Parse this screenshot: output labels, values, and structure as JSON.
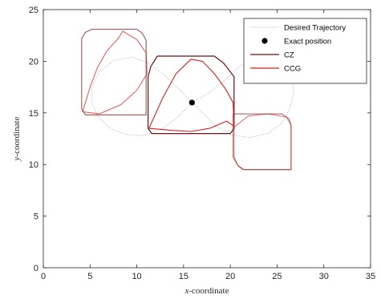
{
  "chart_data": {
    "type": "line",
    "xlabel_italic": "x",
    "xlabel_rest": "-coordinate",
    "ylabel_italic": "y",
    "ylabel_rest": "-coordinate",
    "xlim": [
      0,
      35
    ],
    "ylim": [
      0,
      25
    ],
    "xticks": [
      "0",
      "5",
      "10",
      "15",
      "20",
      "25",
      "30",
      "35"
    ],
    "yticks": [
      "0",
      "5",
      "10",
      "15",
      "20",
      "25"
    ],
    "grid": false,
    "legend_position": "top-right",
    "legend": [
      {
        "label": "Desired Trajectory",
        "style": "dotted-line",
        "color": "#b8bcc8"
      },
      {
        "label": "Exact position",
        "style": "marker",
        "color": "#000000"
      },
      {
        "label": "CZ",
        "style": "line",
        "color": "#6e1212"
      },
      {
        "label": "CCG",
        "style": "line",
        "color": "#d42020"
      }
    ],
    "exact_position": {
      "x": 15.9,
      "y": 16.0
    },
    "trajectory": [
      [
        15.9,
        16.0
      ],
      [
        17.5,
        16.8
      ],
      [
        19.2,
        18.0
      ],
      [
        21.0,
        19.5
      ],
      [
        22.6,
        20.3
      ],
      [
        24.5,
        20.4
      ],
      [
        26.0,
        19.8
      ],
      [
        26.6,
        18.6
      ],
      [
        26.8,
        17.0
      ],
      [
        26.4,
        15.5
      ],
      [
        25.5,
        14.0
      ],
      [
        24.0,
        13.0
      ],
      [
        22.0,
        12.6
      ],
      [
        20.0,
        12.9
      ],
      [
        18.4,
        13.8
      ],
      [
        17.0,
        15.0
      ],
      [
        15.9,
        16.0
      ],
      [
        14.6,
        17.2
      ],
      [
        13.0,
        18.6
      ],
      [
        11.3,
        19.8
      ],
      [
        9.5,
        20.4
      ],
      [
        7.6,
        20.1
      ],
      [
        6.0,
        19.0
      ],
      [
        5.2,
        17.5
      ],
      [
        5.2,
        16.0
      ],
      [
        5.8,
        14.7
      ],
      [
        7.0,
        13.6
      ],
      [
        8.8,
        12.9
      ],
      [
        10.8,
        12.8
      ],
      [
        12.6,
        13.4
      ],
      [
        14.4,
        14.6
      ],
      [
        15.9,
        16.0
      ]
    ],
    "cz_zones": [
      {
        "opacity": 1.0,
        "points": [
          [
            12.2,
            20.5
          ],
          [
            18.3,
            20.5
          ],
          [
            19.3,
            19.8
          ],
          [
            20.4,
            18.5
          ],
          [
            20.4,
            13.5
          ],
          [
            20.0,
            13.0
          ],
          [
            11.6,
            13.0
          ],
          [
            11.2,
            13.5
          ],
          [
            11.2,
            18.5
          ],
          [
            11.5,
            19.5
          ]
        ]
      },
      {
        "opacity": 0.65,
        "points": [
          [
            5.2,
            23.1
          ],
          [
            10.0,
            23.1
          ],
          [
            10.6,
            22.7
          ],
          [
            11.0,
            22.0
          ],
          [
            11.0,
            14.8
          ],
          [
            4.5,
            14.8
          ],
          [
            4.1,
            15.4
          ],
          [
            4.1,
            22.2
          ],
          [
            4.5,
            22.8
          ]
        ]
      },
      {
        "opacity": 0.55,
        "points": [
          [
            20.3,
            14.9
          ],
          [
            25.5,
            14.9
          ],
          [
            26.3,
            14.4
          ],
          [
            26.5,
            13.8
          ],
          [
            26.5,
            9.5
          ],
          [
            21.3,
            9.5
          ],
          [
            20.8,
            9.9
          ],
          [
            20.3,
            10.7
          ]
        ]
      }
    ],
    "ccg_zones": [
      {
        "opacity": 1.0,
        "points": [
          [
            11.3,
            13.5
          ],
          [
            12.8,
            16.5
          ],
          [
            14.2,
            18.8
          ],
          [
            15.8,
            20.2
          ],
          [
            17.0,
            20.0
          ],
          [
            18.3,
            18.8
          ],
          [
            19.5,
            17.3
          ],
          [
            20.3,
            16.0
          ],
          [
            20.4,
            13.7
          ],
          [
            19.6,
            14.2
          ],
          [
            17.8,
            13.5
          ],
          [
            15.8,
            13.2
          ],
          [
            13.8,
            13.3
          ]
        ]
      },
      {
        "opacity": 0.7,
        "points": [
          [
            4.2,
            15.1
          ],
          [
            5.0,
            17.5
          ],
          [
            5.8,
            19.4
          ],
          [
            6.8,
            21.0
          ],
          [
            8.0,
            22.2
          ],
          [
            8.5,
            22.9
          ],
          [
            10.0,
            22.1
          ],
          [
            11.0,
            20.8
          ],
          [
            11.1,
            18.8
          ],
          [
            10.0,
            17.2
          ],
          [
            8.3,
            15.8
          ],
          [
            6.0,
            14.9
          ]
        ]
      },
      {
        "opacity": 0.6,
        "points": [
          [
            20.4,
            13.6
          ],
          [
            21.9,
            14.7
          ],
          [
            24.0,
            14.9
          ],
          [
            26.0,
            14.6
          ],
          [
            26.5,
            13.8
          ],
          [
            26.5,
            9.5
          ],
          [
            21.5,
            9.5
          ],
          [
            20.8,
            9.9
          ],
          [
            20.4,
            10.8
          ]
        ]
      }
    ]
  }
}
